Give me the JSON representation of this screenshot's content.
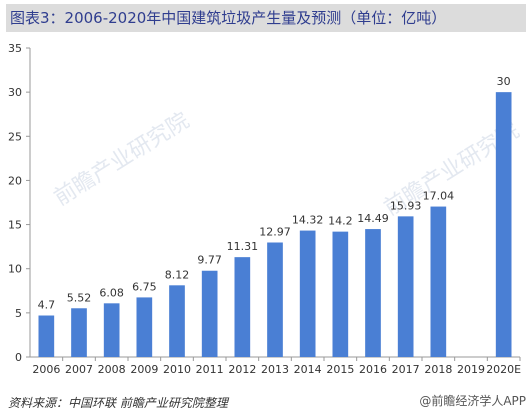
{
  "chart_data": {
    "type": "bar",
    "title": "图表3：2006-2020年中国建筑垃圾产生量及预测（单位：亿吨）",
    "categories": [
      "2006",
      "2007",
      "2008",
      "2009",
      "2010",
      "2011",
      "2012",
      "2013",
      "2014",
      "2015",
      "2016",
      "2017",
      "2018",
      "2019",
      "2020E"
    ],
    "values": [
      4.7,
      5.52,
      6.08,
      6.75,
      8.12,
      9.77,
      11.31,
      12.97,
      14.32,
      14.2,
      14.49,
      15.93,
      17.04,
      null,
      30
    ],
    "value_labels": [
      "4.7",
      "5.52",
      "6.08",
      "6.75",
      "8.12",
      "9.77",
      "11.31",
      "12.97",
      "14.32",
      "14.2",
      "14.49",
      "15.93",
      "17.04",
      "",
      "30"
    ],
    "ylim": [
      0,
      35
    ],
    "yticks": [
      0,
      5,
      10,
      15,
      20,
      25,
      30,
      35
    ],
    "ytick_labels": [
      "0",
      "5",
      "10",
      "15",
      "20",
      "25",
      "30",
      "35"
    ],
    "xlabel": "",
    "ylabel": "",
    "grid": false,
    "legend": "none",
    "bar_color": "#4a7fd4"
  },
  "footer": {
    "source": "资料来源：中国环联 前瞻产业研究院整理",
    "credit": "@前瞻经济学人APP"
  },
  "watermark": "前瞻产业研究院"
}
